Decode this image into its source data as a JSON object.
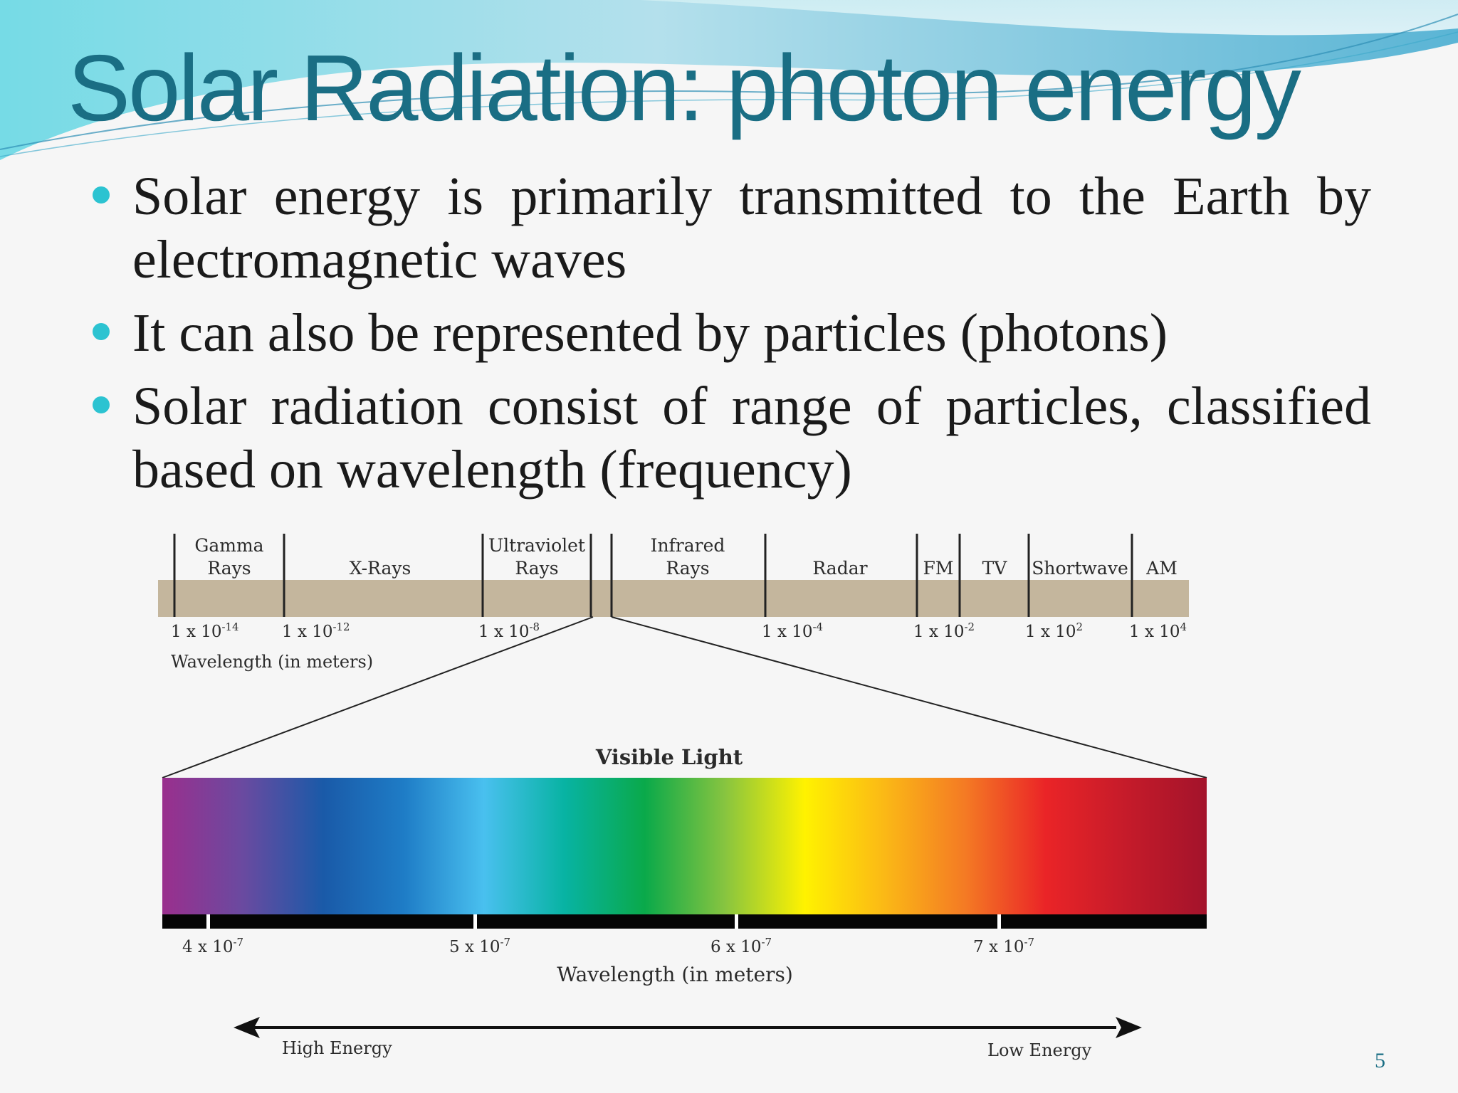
{
  "slide": {
    "title": "Solar Radiation: photon energy",
    "bullets": [
      "Solar energy is primarily transmitted to the Earth by electromagnetic waves",
      "It can also be represented by particles (photons)",
      "Solar radiation consist of range of particles, classified based on wavelength (frequency)"
    ],
    "page_number": "5"
  },
  "colors": {
    "title": "#1a6e84",
    "bullet": "#2cc3d1",
    "band": "#c4b69d",
    "diagram_text": "#2b2b2b"
  },
  "diagram": {
    "em_bands": [
      {
        "lines": [
          "Gamma",
          "Rays"
        ]
      },
      {
        "lines": [
          "X-Rays"
        ]
      },
      {
        "lines": [
          "Ultraviolet",
          "Rays"
        ]
      },
      {
        "lines": [
          "Infrared",
          "Rays"
        ]
      },
      {
        "lines": [
          "Radar"
        ]
      },
      {
        "lines": [
          "FM"
        ]
      },
      {
        "lines": [
          "TV"
        ]
      },
      {
        "lines": [
          "Shortwave"
        ]
      },
      {
        "lines": [
          "AM"
        ]
      }
    ],
    "em_ticks": [
      {
        "base": "1 x 10",
        "exp": "-14"
      },
      {
        "base": "1 x 10",
        "exp": "-12"
      },
      {
        "base": "1 x 10",
        "exp": "-8"
      },
      {
        "base": "1 x 10",
        "exp": "-4"
      },
      {
        "base": "1 x 10",
        "exp": "-2"
      },
      {
        "base": "1 x 10",
        "exp": "2"
      },
      {
        "base": "1 x 10",
        "exp": "4"
      }
    ],
    "em_axis_label": "Wavelength (in meters)",
    "visible_title": "Visible Light",
    "visible_ticks": [
      {
        "base": "4 x 10",
        "exp": "-7"
      },
      {
        "base": "5 x 10",
        "exp": "-7"
      },
      {
        "base": "6 x 10",
        "exp": "-7"
      },
      {
        "base": "7 x 10",
        "exp": "-7"
      }
    ],
    "visible_axis_label": "Wavelength (in meters)",
    "energy_left": "High Energy",
    "energy_right": "Low Energy",
    "visible_gradient": [
      "#9a2f8d",
      "#6a4aa0",
      "#1a5aa8",
      "#1e7cc6",
      "#49c0ef",
      "#08b3a3",
      "#0aa94a",
      "#86c440",
      "#fff200",
      "#fbb816",
      "#f47a24",
      "#ea2427",
      "#c51b2a",
      "#a3132b"
    ]
  }
}
